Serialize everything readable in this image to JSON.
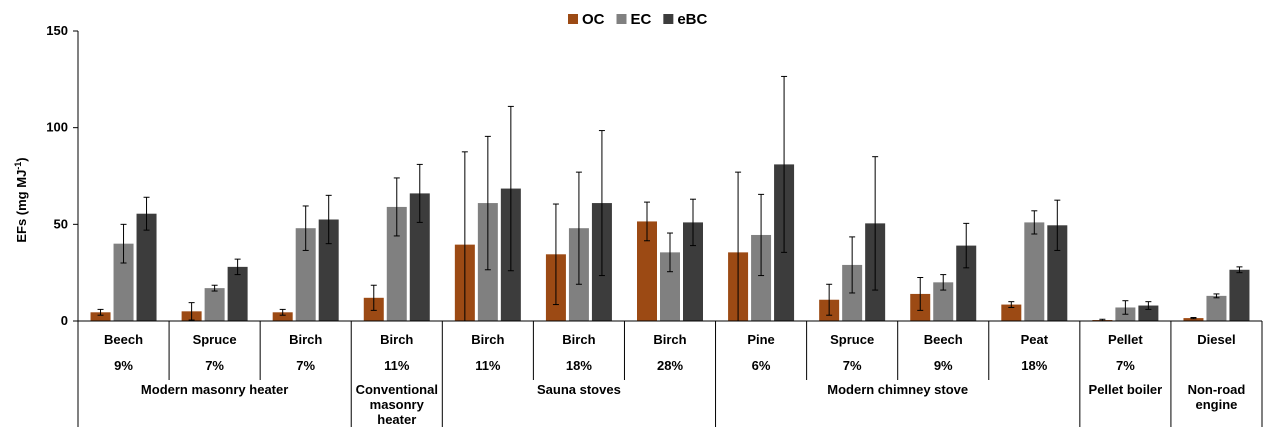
{
  "chart_data": {
    "type": "bar",
    "ylabel": "EFs (mg MJ",
    "ylabel_superscript": "-1",
    "ylabel_suffix": ")",
    "ylim": [
      0,
      150
    ],
    "yticks": [
      "0",
      "50",
      "100",
      "150"
    ],
    "legend_position": "top-center",
    "series": [
      {
        "name": "OC",
        "color": "#9c4a14",
        "values": [
          4.5,
          5,
          4.5,
          12,
          39.5,
          34.5,
          51.5,
          35.5,
          11,
          14,
          8.5,
          0.5,
          1.5
        ],
        "errors": [
          1.5,
          4.5,
          1.5,
          6.5,
          48,
          26,
          10,
          41.5,
          8,
          8.5,
          1.5,
          0.4,
          0.3
        ]
      },
      {
        "name": "EC",
        "color": "#808080",
        "values": [
          40,
          17,
          48,
          59,
          61,
          48,
          35.5,
          44.5,
          29,
          20,
          51,
          7,
          13
        ],
        "errors": [
          10,
          1.5,
          11.5,
          15,
          34.5,
          29,
          10,
          21,
          14.5,
          4,
          6,
          3.5,
          1
        ]
      },
      {
        "name": "eBC",
        "color": "#3c3c3c",
        "values": [
          55.5,
          28,
          52.5,
          66,
          68.5,
          61,
          51,
          81,
          50.5,
          39,
          49.5,
          8,
          26.5
        ],
        "errors": [
          8.5,
          4,
          12.5,
          15,
          42.5,
          37.5,
          12,
          45.5,
          34.5,
          11.5,
          13,
          2,
          1.5
        ]
      }
    ],
    "categories": [
      {
        "fuel": "Beech",
        "percent": "9%"
      },
      {
        "fuel": "Spruce",
        "percent": "7%"
      },
      {
        "fuel": "Birch",
        "percent": "7%"
      },
      {
        "fuel": "Birch",
        "percent": "11%"
      },
      {
        "fuel": "Birch",
        "percent": "11%"
      },
      {
        "fuel": "Birch",
        "percent": "18%"
      },
      {
        "fuel": "Birch",
        "percent": "28%"
      },
      {
        "fuel": "Pine",
        "percent": "6%"
      },
      {
        "fuel": "Spruce",
        "percent": "7%"
      },
      {
        "fuel": "Beech",
        "percent": "9%"
      },
      {
        "fuel": "Peat",
        "percent": "18%"
      },
      {
        "fuel": "Pellet",
        "percent": "7%"
      },
      {
        "fuel": "Diesel",
        "percent": ""
      }
    ],
    "groups": [
      {
        "label_lines": [
          "Modern masonry heater"
        ],
        "start": 0,
        "end": 2
      },
      {
        "label_lines": [
          "Conventional",
          "masonry",
          "heater"
        ],
        "start": 3,
        "end": 3
      },
      {
        "label_lines": [
          "Sauna stoves"
        ],
        "start": 4,
        "end": 6
      },
      {
        "label_lines": [
          "Modern chimney stove"
        ],
        "start": 7,
        "end": 10
      },
      {
        "label_lines": [
          "Pellet boiler"
        ],
        "start": 11,
        "end": 11
      },
      {
        "label_lines": [
          "Non-road",
          "engine"
        ],
        "start": 12,
        "end": 12
      }
    ]
  }
}
